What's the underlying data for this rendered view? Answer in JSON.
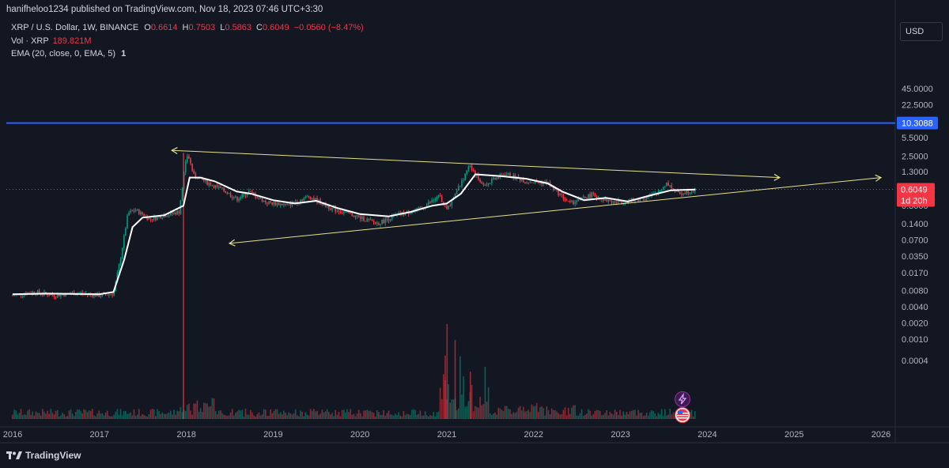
{
  "header": {
    "published": "hanifheloo1234 published on TradingView.com, Nov 18, 2023 07:46 UTC+3:30"
  },
  "legend": {
    "symbol": "XRP / U.S. Dollar, 1W, BINANCE",
    "o_label": "O",
    "o": "0.6614",
    "h_label": "H",
    "h": "0.7503",
    "l_label": "L",
    "l": "0.5863",
    "c_label": "C",
    "c": "0.6049",
    "change": "−0.0560 (−8.47%)",
    "vol_label": "Vol · XRP",
    "vol": "189.821M",
    "ema_label": "EMA (20, close, 0, EMA, 5)",
    "ema_value": "1"
  },
  "currency_button": "USD",
  "footer": {
    "brand": "TradingView",
    "logo_icon": "tradingview-logo-icon"
  },
  "events": {
    "icons": [
      "lightning-icon",
      "us-flag-icon"
    ]
  },
  "colors": {
    "background": "#131722",
    "up": "#089981",
    "down": "#f23645",
    "ema": "#ffffff",
    "resistance": "#2962ff",
    "trendline": "#e8e08a",
    "price": "#f23645"
  },
  "chart_data": {
    "type": "candlestick",
    "y_scale": "log",
    "x_ticks": [
      "2016",
      "2017",
      "2018",
      "2019",
      "2020",
      "2021",
      "2022",
      "2023",
      "2024",
      "2025",
      "2026"
    ],
    "y_ticks": [
      "45.0000",
      "22.5000",
      "5.5000",
      "2.5000",
      "1.3000",
      "0.3000",
      "0.1400",
      "0.0700",
      "0.0350",
      "0.0170",
      "0.0080",
      "0.0040",
      "0.0020",
      "0.0010",
      "0.0004"
    ],
    "ylim": [
      0.0004,
      60
    ],
    "horizontal_line": {
      "value": 10.3088,
      "label": "10.3088"
    },
    "last_price": {
      "value": 0.6049,
      "label": "0.6049",
      "countdown": "1d 20h"
    },
    "weekly_close_series": [
      [
        "2016-01-01",
        0.0065
      ],
      [
        "2016-04-01",
        0.0075
      ],
      [
        "2016-07-01",
        0.0065
      ],
      [
        "2016-10-01",
        0.0072
      ],
      [
        "2017-01-01",
        0.0065
      ],
      [
        "2017-03-01",
        0.007
      ],
      [
        "2017-04-01",
        0.035
      ],
      [
        "2017-05-01",
        0.22
      ],
      [
        "2017-06-01",
        0.25
      ],
      [
        "2017-08-01",
        0.17
      ],
      [
        "2017-10-01",
        0.2
      ],
      [
        "2017-12-01",
        0.23
      ],
      [
        "2017-12-25",
        1.5
      ],
      [
        "2018-01-07",
        2.8
      ],
      [
        "2018-02-01",
        1.1
      ],
      [
        "2018-04-01",
        0.8
      ],
      [
        "2018-06-01",
        0.6
      ],
      [
        "2018-08-01",
        0.4
      ],
      [
        "2018-09-20",
        0.55
      ],
      [
        "2018-12-01",
        0.35
      ],
      [
        "2019-03-01",
        0.31
      ],
      [
        "2019-06-01",
        0.45
      ],
      [
        "2019-09-01",
        0.27
      ],
      [
        "2019-12-01",
        0.2
      ],
      [
        "2020-03-15",
        0.14
      ],
      [
        "2020-06-01",
        0.2
      ],
      [
        "2020-09-01",
        0.25
      ],
      [
        "2020-12-01",
        0.45
      ],
      [
        "2021-01-01",
        0.25
      ],
      [
        "2021-04-10",
        1.7
      ],
      [
        "2021-06-01",
        0.7
      ],
      [
        "2021-09-01",
        1.2
      ],
      [
        "2021-12-01",
        0.85
      ],
      [
        "2022-03-01",
        0.8
      ],
      [
        "2022-06-01",
        0.33
      ],
      [
        "2022-09-01",
        0.48
      ],
      [
        "2022-12-01",
        0.35
      ],
      [
        "2023-03-01",
        0.38
      ],
      [
        "2023-06-01",
        0.5
      ],
      [
        "2023-07-15",
        0.8
      ],
      [
        "2023-09-01",
        0.5
      ],
      [
        "2023-11-12",
        0.6049
      ]
    ],
    "ema_series": [
      [
        "2016-01-01",
        0.0068
      ],
      [
        "2016-06-01",
        0.007
      ],
      [
        "2017-01-01",
        0.0068
      ],
      [
        "2017-03-01",
        0.0075
      ],
      [
        "2017-04-15",
        0.03
      ],
      [
        "2017-05-20",
        0.12
      ],
      [
        "2017-07-01",
        0.18
      ],
      [
        "2017-10-01",
        0.2
      ],
      [
        "2017-12-20",
        0.3
      ],
      [
        "2018-01-15",
        1.0
      ],
      [
        "2018-03-01",
        1.0
      ],
      [
        "2018-05-01",
        0.85
      ],
      [
        "2018-08-01",
        0.55
      ],
      [
        "2018-10-01",
        0.5
      ],
      [
        "2019-01-01",
        0.38
      ],
      [
        "2019-04-01",
        0.33
      ],
      [
        "2019-07-01",
        0.37
      ],
      [
        "2019-10-01",
        0.27
      ],
      [
        "2020-01-01",
        0.21
      ],
      [
        "2020-05-01",
        0.19
      ],
      [
        "2020-08-01",
        0.23
      ],
      [
        "2020-11-01",
        0.3
      ],
      [
        "2021-01-01",
        0.33
      ],
      [
        "2021-03-01",
        0.5
      ],
      [
        "2021-05-01",
        1.15
      ],
      [
        "2021-09-01",
        1.05
      ],
      [
        "2021-12-01",
        0.95
      ],
      [
        "2022-03-01",
        0.78
      ],
      [
        "2022-05-01",
        0.55
      ],
      [
        "2022-08-01",
        0.38
      ],
      [
        "2022-11-01",
        0.42
      ],
      [
        "2023-02-01",
        0.36
      ],
      [
        "2023-05-01",
        0.46
      ],
      [
        "2023-08-01",
        0.58
      ],
      [
        "2023-11-12",
        0.6
      ]
    ],
    "trendlines": [
      {
        "name": "resistance",
        "from": [
          "2017-11-01",
          3.2
        ],
        "to": [
          "2024-11-01",
          1.0
        ]
      },
      {
        "name": "support",
        "from": [
          "2018-07-01",
          0.06
        ],
        "to": [
          "2026-01-01",
          1.0
        ]
      }
    ],
    "grid": false
  }
}
